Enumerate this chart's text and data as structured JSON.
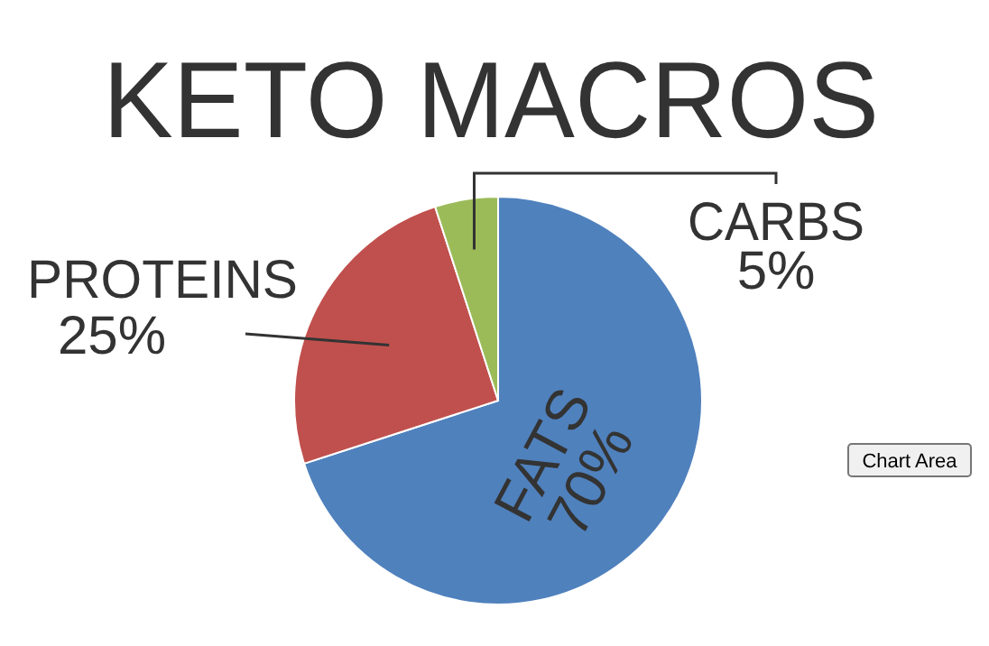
{
  "chart_data": {
    "type": "pie",
    "title": "KETO MACROS",
    "categories": [
      "FATS",
      "PROTEINS",
      "CARBS"
    ],
    "values": [
      70,
      25,
      5
    ],
    "value_labels": [
      "70%",
      "25%",
      "5%"
    ],
    "colors": [
      "#4f81bd",
      "#c0504d",
      "#9bbb59"
    ],
    "annotations": [
      "Chart Area"
    ]
  }
}
